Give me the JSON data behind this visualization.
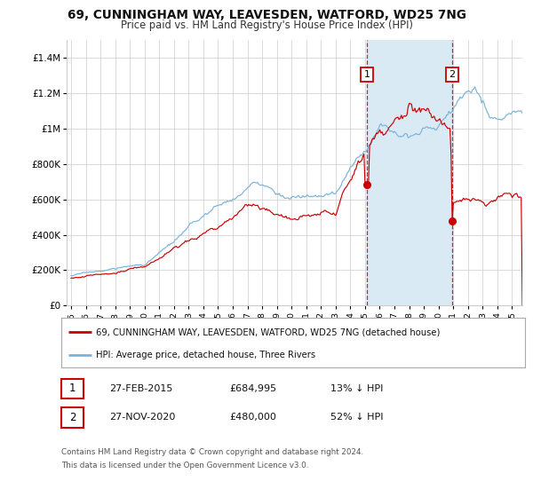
{
  "title_line1": "69, CUNNINGHAM WAY, LEAVESDEN, WATFORD, WD25 7NG",
  "title_line2": "Price paid vs. HM Land Registry's House Price Index (HPI)",
  "ylabel_ticks": [
    "£0",
    "£200K",
    "£400K",
    "£600K",
    "£800K",
    "£1M",
    "£1.2M",
    "£1.4M"
  ],
  "ylim": [
    0,
    1500000
  ],
  "xlim_start": 1994.7,
  "xlim_end": 2025.7,
  "sale1_date": 2015.13,
  "sale1_price": 684995,
  "sale2_date": 2020.92,
  "sale2_price": 480000,
  "legend_line1": "69, CUNNINGHAM WAY, LEAVESDEN, WATFORD, WD25 7NG (detached house)",
  "legend_line2": "HPI: Average price, detached house, Three Rivers",
  "hpi_color": "#7ab3d8",
  "price_color": "#cc0000",
  "shade_color": "#daeaf5",
  "background_color": "#ffffff",
  "grid_color": "#cccccc",
  "footer_line1": "Contains HM Land Registry data © Crown copyright and database right 2024.",
  "footer_line2": "This data is licensed under the Open Government Licence v3.0.",
  "xticks": [
    1995,
    1996,
    1997,
    1998,
    1999,
    2000,
    2001,
    2002,
    2003,
    2004,
    2005,
    2006,
    2007,
    2008,
    2009,
    2010,
    2011,
    2012,
    2013,
    2014,
    2015,
    2016,
    2017,
    2018,
    2019,
    2020,
    2021,
    2022,
    2023,
    2024,
    2025
  ],
  "ytick_vals": [
    0,
    200000,
    400000,
    600000,
    800000,
    1000000,
    1200000,
    1400000
  ]
}
